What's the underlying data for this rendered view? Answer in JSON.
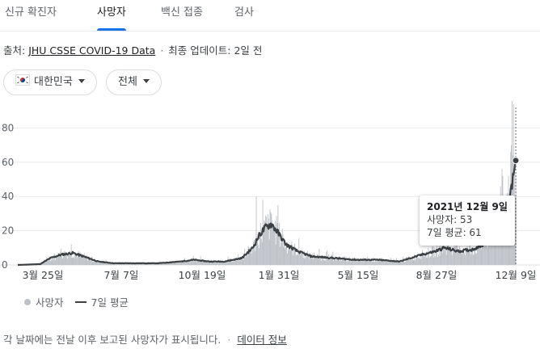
{
  "tabs": [
    {
      "label": "신규 확진자"
    },
    {
      "label": "사망자"
    },
    {
      "label": "백신 접종"
    },
    {
      "label": "검사"
    }
  ],
  "source": {
    "prefix": "출처:",
    "link": "JHU CSSE COVID-19 Data",
    "separator": "·",
    "updated": "최종 업데이트: 2일 전"
  },
  "filters": {
    "region": "대한민국",
    "period": "전체"
  },
  "tooltip": {
    "date": "2021년 12월 9일",
    "deaths": "사망자: 53",
    "average": "7일 평균: 61"
  },
  "legend": {
    "daily": "사망자",
    "average": "7일 평균"
  },
  "footer": {
    "note": "각 날짜에는 전날 이후 보고된 사망자가 표시됩니다.",
    "separator": "·",
    "link": "데이터 정보"
  },
  "colors": {
    "bars": "#bdc1c6",
    "line": "#3c4043",
    "accent": "#1a73e8"
  },
  "chart_data": {
    "type": "bar",
    "x_start": "2020-01-20",
    "x_end": "2021-12-09",
    "y_ticks": [
      0,
      20,
      40,
      60,
      80
    ],
    "ylim": [
      0,
      92
    ],
    "x_ticks": [
      "3월 25일",
      "7월 7일",
      "10월 19일",
      "1월 31일",
      "5월 15일",
      "8월 27일",
      "12월 9일"
    ],
    "grid": true,
    "series": [
      {
        "name": "7일 평균",
        "type": "line",
        "points": [
          [
            "2020-01-20",
            0
          ],
          [
            "2020-02-20",
            0.5
          ],
          [
            "2020-03-05",
            4
          ],
          [
            "2020-03-20",
            6
          ],
          [
            "2020-04-05",
            7
          ],
          [
            "2020-04-20",
            5
          ],
          [
            "2020-05-10",
            2
          ],
          [
            "2020-06-01",
            1
          ],
          [
            "2020-07-01",
            1
          ],
          [
            "2020-08-01",
            1
          ],
          [
            "2020-09-01",
            2
          ],
          [
            "2020-09-20",
            3
          ],
          [
            "2020-10-10",
            2
          ],
          [
            "2020-11-01",
            2
          ],
          [
            "2020-11-25",
            4
          ],
          [
            "2020-12-10",
            10
          ],
          [
            "2020-12-20",
            18
          ],
          [
            "2020-12-28",
            22
          ],
          [
            "2021-01-05",
            24
          ],
          [
            "2021-01-12",
            20
          ],
          [
            "2021-01-25",
            12
          ],
          [
            "2021-02-10",
            8
          ],
          [
            "2021-03-01",
            5
          ],
          [
            "2021-04-01",
            4
          ],
          [
            "2021-05-01",
            3
          ],
          [
            "2021-06-01",
            3
          ],
          [
            "2021-07-01",
            2
          ],
          [
            "2021-08-01",
            6
          ],
          [
            "2021-08-20",
            8
          ],
          [
            "2021-09-01",
            10
          ],
          [
            "2021-09-20",
            8
          ],
          [
            "2021-10-10",
            9
          ],
          [
            "2021-10-25",
            12
          ],
          [
            "2021-11-05",
            18
          ],
          [
            "2021-11-15",
            25
          ],
          [
            "2021-11-25",
            35
          ],
          [
            "2021-12-01",
            42
          ],
          [
            "2021-12-05",
            50
          ],
          [
            "2021-12-09",
            61
          ]
        ]
      },
      {
        "name": "사망자",
        "type": "bar",
        "peaks": [
          [
            "2020-04-03",
            12
          ],
          [
            "2020-12-15",
            40
          ],
          [
            "2020-12-24",
            38
          ],
          [
            "2021-01-05",
            30
          ],
          [
            "2021-11-20",
            56
          ],
          [
            "2021-12-03",
            70
          ],
          [
            "2021-12-06",
            94
          ],
          [
            "2021-12-07",
            60
          ],
          [
            "2021-12-09",
            53
          ]
        ]
      }
    ]
  }
}
